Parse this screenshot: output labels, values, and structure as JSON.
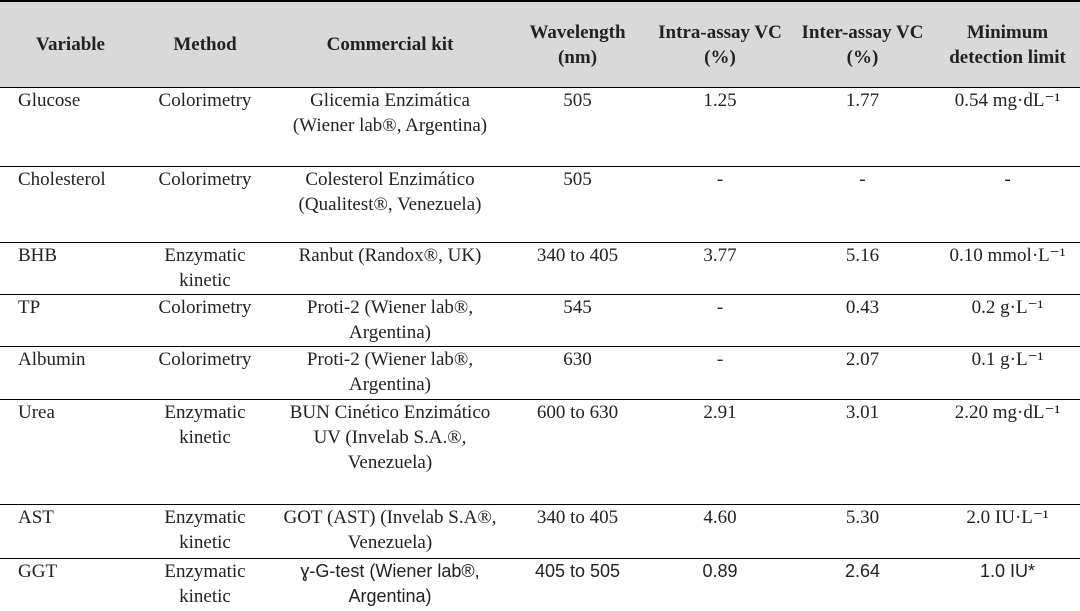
{
  "table": {
    "header": [
      "Variable",
      "Method",
      "Commercial kit",
      "Wavelength (nm)",
      "Intra-assay VC (%)",
      "Inter-assay VC (%)",
      "Minimum detection limit"
    ],
    "rows": [
      [
        "Glucose",
        "Colorimetry",
        "Glicemia Enzimática (Wiener lab®, Argentina)",
        "505",
        "1.25",
        "1.77",
        "0.54 mg·dL⁻¹"
      ],
      [
        "Cholesterol",
        "Colorimetry",
        "Colesterol Enzimático (Qualitest®, Venezuela)",
        "505",
        "-",
        "-",
        "-"
      ],
      [
        "BHB",
        "Enzymatic kinetic",
        "Ranbut (Randox®, UK)",
        "340 to 405",
        "3.77",
        "5.16",
        "0.10 mmol·L⁻¹"
      ],
      [
        "TP",
        "Colorimetry",
        "Proti-2 (Wiener lab®, Argentina)",
        "545",
        "-",
        "0.43",
        "0.2 g·L⁻¹"
      ],
      [
        "Albumin",
        "Colorimetry",
        "Proti-2 (Wiener lab®, Argentina)",
        "630",
        "-",
        "2.07",
        "0.1 g·L⁻¹"
      ],
      [
        "Urea",
        "Enzymatic kinetic",
        "BUN Cinético Enzimático UV (Invelab S.A.®, Venezuela)",
        "600 to 630",
        "2.91",
        "3.01",
        "2.20 mg·dL⁻¹"
      ],
      [
        "AST",
        "Enzymatic kinetic",
        "GOT (AST) (Invelab S.A®, Venezuela)",
        "340 to 405",
        "4.60",
        "5.30",
        "2.0 IU·L⁻¹"
      ],
      [
        "GGT",
        "Enzymatic kinetic",
        "ɣ-G-test (Wiener lab®, Argentina)",
        "405 to 505",
        "0.89",
        "2.64",
        "1.0 IU*"
      ]
    ]
  }
}
